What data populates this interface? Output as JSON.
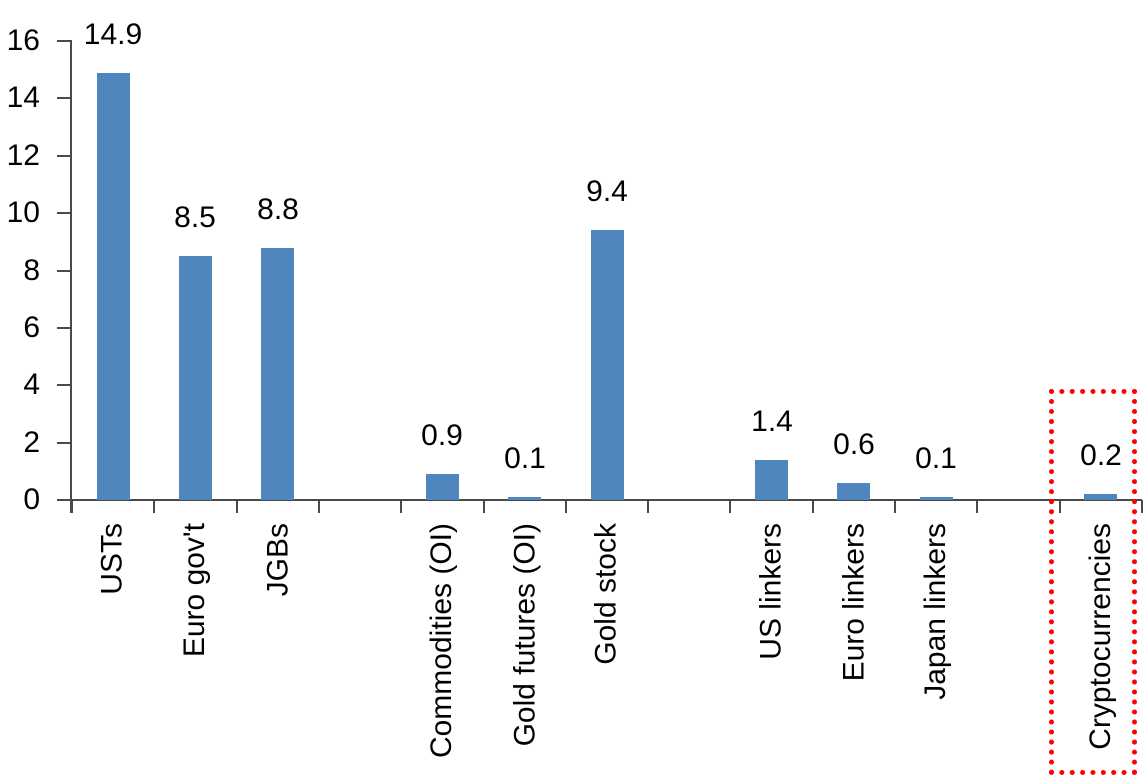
{
  "chart_data": {
    "type": "bar",
    "title": "",
    "xlabel": "",
    "ylabel": "",
    "categories": [
      "USTs",
      "Euro gov't",
      "JGBs",
      "Commodities (OI)",
      "Gold futures (OI)",
      "Gold stock",
      "US linkers",
      "Euro linkers",
      "Japan linkers",
      "Cryptocurrencies"
    ],
    "values": [
      14.9,
      8.5,
      8.8,
      0.9,
      0.1,
      9.4,
      1.4,
      0.6,
      0.1,
      0.2
    ],
    "value_labels": [
      "14.9",
      "8.5",
      "8.8",
      "0.9",
      "0.1",
      "9.4",
      "1.4",
      "0.6",
      "0.1",
      "0.2"
    ],
    "slots": [
      0,
      1,
      2,
      4,
      5,
      6,
      8,
      9,
      10,
      12
    ],
    "total_slots": 13,
    "group_gaps_after": [
      "JGBs",
      "Gold stock",
      "Japan linkers"
    ],
    "ylim": [
      0,
      16
    ],
    "ytick_step": 2,
    "ytick_labels": [
      "0",
      "2",
      "4",
      "6",
      "8",
      "10",
      "12",
      "14",
      "16"
    ],
    "grid": false,
    "legend": false,
    "bar_color": "#4e86bd",
    "axis_color": "#4a4a4a",
    "label_color": "#000000",
    "highlight": {
      "category": "Cryptocurrencies",
      "slot": 12,
      "style": "red-dotted-box",
      "color": "#ff0000"
    }
  }
}
